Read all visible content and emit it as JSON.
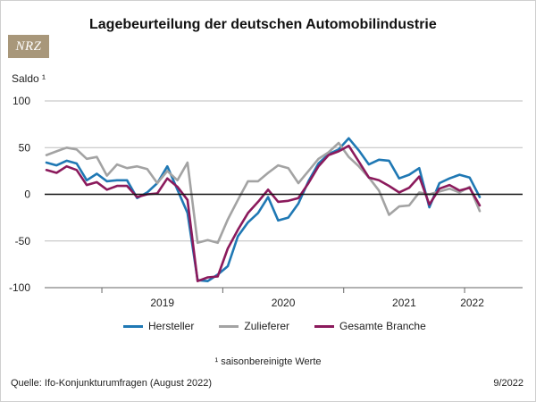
{
  "logo_text": "NRZ",
  "colors": {
    "hersteller": "#1f78b4",
    "zulieferer": "#a3a3a3",
    "gesamte": "#8b1a5c"
  },
  "chart_data": {
    "type": "line",
    "title": "Lagebeurteilung der deutschen Automobilindustrie",
    "ylabel": "Saldo ¹",
    "ylim": [
      -100,
      100
    ],
    "yticks": [
      100,
      50,
      0,
      -50,
      -100
    ],
    "year_labels": [
      "2019",
      "2020",
      "2021",
      "2022"
    ],
    "x_start": "2018-07",
    "x_end": "2022-08",
    "series": [
      {
        "name": "Hersteller",
        "values": [
          34,
          31,
          36,
          33,
          15,
          22,
          14,
          15,
          15,
          -4,
          2,
          12,
          30,
          5,
          -20,
          -92,
          -93,
          -86,
          -77,
          -45,
          -30,
          -20,
          -3,
          -28,
          -25,
          -10,
          14,
          33,
          43,
          48,
          60,
          47,
          32,
          37,
          36,
          17,
          21,
          28,
          -14,
          12,
          17,
          21,
          18,
          -3
        ]
      },
      {
        "name": "Zulieferer",
        "values": [
          42,
          46,
          50,
          48,
          38,
          40,
          20,
          32,
          28,
          30,
          27,
          12,
          25,
          15,
          34,
          -52,
          -49,
          -52,
          -27,
          -6,
          14,
          14,
          23,
          31,
          28,
          12,
          25,
          38,
          45,
          55,
          40,
          30,
          18,
          4,
          -22,
          -13,
          -12,
          2,
          0,
          3,
          6,
          2,
          8,
          -18
        ]
      },
      {
        "name": "Gesamte Branche",
        "values": [
          26,
          23,
          30,
          26,
          10,
          13,
          5,
          9,
          9,
          -3,
          0,
          1,
          17,
          8,
          -6,
          -93,
          -89,
          -88,
          -58,
          -38,
          -20,
          -8,
          5,
          -8,
          -7,
          -4,
          12,
          30,
          42,
          46,
          52,
          35,
          18,
          15,
          9,
          2,
          7,
          19,
          -11,
          6,
          10,
          4,
          7,
          -12
        ]
      }
    ]
  },
  "legend": [
    "Hersteller",
    "Zulieferer",
    "Gesamte Branche"
  ],
  "footnote": "¹ saisonbereinigte Werte",
  "source": "Quelle: Ifo-Konjunkturumfragen (August 2022)",
  "issue": "9/2022"
}
